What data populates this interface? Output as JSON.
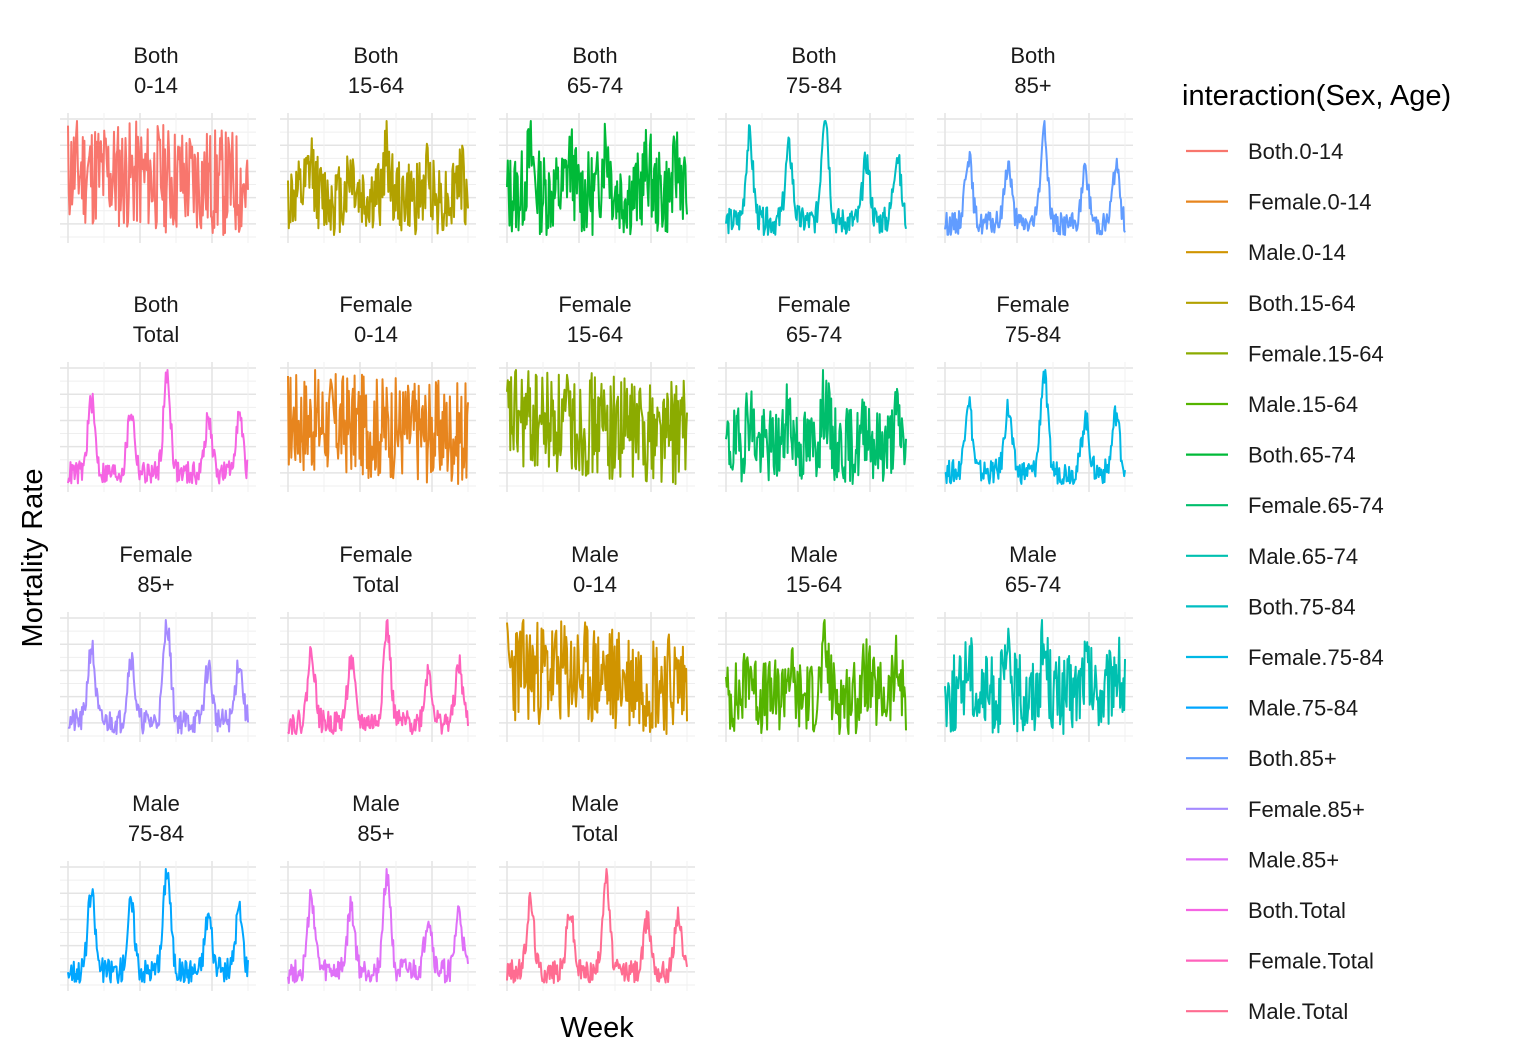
{
  "chart_data": {
    "type": "line",
    "title": "",
    "xlabel": "Week",
    "ylabel": "Mortality Rate",
    "facet_scales": "free",
    "axis_tick_labels_shown": false,
    "grid": true,
    "legend": {
      "title": "interaction(Sex, Age)",
      "placement": "right",
      "entries": [
        {
          "label": "Both.0-14",
          "color": "#F8766D"
        },
        {
          "label": "Female.0-14",
          "color": "#E7851E"
        },
        {
          "label": "Male.0-14",
          "color": "#D09400"
        },
        {
          "label": "Both.15-64",
          "color": "#B2A100"
        },
        {
          "label": "Female.15-64",
          "color": "#8BAB00"
        },
        {
          "label": "Male.15-64",
          "color": "#55B400"
        },
        {
          "label": "Both.65-74",
          "color": "#00BA38"
        },
        {
          "label": "Female.65-74",
          "color": "#00BE6C"
        },
        {
          "label": "Male.65-74",
          "color": "#00C0B0"
        },
        {
          "label": "Both.75-84",
          "color": "#00BDC2"
        },
        {
          "label": "Female.75-84",
          "color": "#00B8E5"
        },
        {
          "label": "Male.75-84",
          "color": "#00A6FF"
        },
        {
          "label": "Both.85+",
          "color": "#619CFF"
        },
        {
          "label": "Female.85+",
          "color": "#A58AFF"
        },
        {
          "label": "Male.85+",
          "color": "#DF70F8"
        },
        {
          "label": "Both.Total",
          "color": "#F564E3"
        },
        {
          "label": "Female.Total",
          "color": "#FF62BC"
        },
        {
          "label": "Male.Total",
          "color": "#FF6C91"
        }
      ]
    },
    "panels": [
      {
        "sex": "Both",
        "age": "0-14",
        "color": "#F8766D",
        "pattern": "noise",
        "seed": 11
      },
      {
        "sex": "Both",
        "age": "15-64",
        "color": "#B2A100",
        "pattern": "mixed",
        "seed": 12
      },
      {
        "sex": "Both",
        "age": "65-74",
        "color": "#00BA38",
        "pattern": "mixed",
        "seed": 13
      },
      {
        "sex": "Both",
        "age": "75-84",
        "color": "#00BDC2",
        "pattern": "seasonal",
        "seed": 14
      },
      {
        "sex": "Both",
        "age": "85+",
        "color": "#619CFF",
        "pattern": "seasonal",
        "seed": 15
      },
      {
        "sex": "Both",
        "age": "Total",
        "color": "#F564E3",
        "pattern": "seasonal",
        "seed": 16
      },
      {
        "sex": "Female",
        "age": "0-14",
        "color": "#E7851E",
        "pattern": "noise",
        "seed": 17
      },
      {
        "sex": "Female",
        "age": "15-64",
        "color": "#8BAB00",
        "pattern": "noise",
        "seed": 18
      },
      {
        "sex": "Female",
        "age": "65-74",
        "color": "#00BE6C",
        "pattern": "mixed",
        "seed": 19
      },
      {
        "sex": "Female",
        "age": "75-84",
        "color": "#00B8E5",
        "pattern": "seasonal",
        "seed": 20
      },
      {
        "sex": "Female",
        "age": "85+",
        "color": "#A58AFF",
        "pattern": "seasonal",
        "seed": 21
      },
      {
        "sex": "Female",
        "age": "Total",
        "color": "#FF62BC",
        "pattern": "seasonal",
        "seed": 22
      },
      {
        "sex": "Male",
        "age": "0-14",
        "color": "#D09400",
        "pattern": "noise",
        "seed": 23
      },
      {
        "sex": "Male",
        "age": "15-64",
        "color": "#55B400",
        "pattern": "mixed",
        "seed": 24
      },
      {
        "sex": "Male",
        "age": "65-74",
        "color": "#00C0B0",
        "pattern": "mixed",
        "seed": 25
      },
      {
        "sex": "Male",
        "age": "75-84",
        "color": "#00A6FF",
        "pattern": "seasonal",
        "seed": 26
      },
      {
        "sex": "Male",
        "age": "85+",
        "color": "#DF70F8",
        "pattern": "seasonal",
        "seed": 27
      },
      {
        "sex": "Male",
        "age": "Total",
        "color": "#FF6C91",
        "pattern": "seasonal",
        "seed": 28
      }
    ]
  }
}
